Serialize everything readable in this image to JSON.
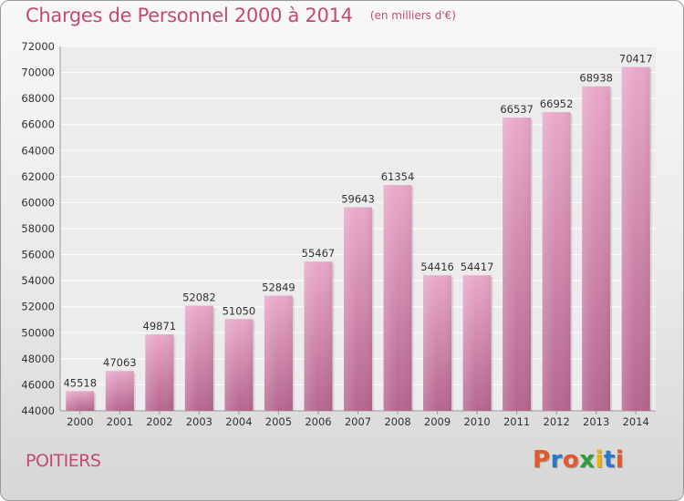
{
  "header": {
    "title": "Charges de Personnel 2000 à 2014",
    "subtitle": "(en milliers d'€)"
  },
  "footer": {
    "city": "POITIERS",
    "logo_text": "Proxiti"
  },
  "colors": {
    "title": "#c24a76",
    "bar_light": "#e9a8c9",
    "bar_dark": "#b5668f",
    "logo": [
      "#e3592b",
      "#2a78c8",
      "#e3592b",
      "#2e9e3a",
      "#f0b400",
      "#2a78c8",
      "#e3592b"
    ]
  },
  "chart_data": {
    "type": "bar",
    "title": "Charges de Personnel 2000 à 2014",
    "subtitle": "(en milliers d'€)",
    "categories": [
      "2000",
      "2001",
      "2002",
      "2003",
      "2004",
      "2005",
      "2006",
      "2007",
      "2008",
      "2009",
      "2010",
      "2011",
      "2012",
      "2013",
      "2014"
    ],
    "values": [
      45518,
      47063,
      49871,
      52082,
      51050,
      52849,
      55467,
      59643,
      61354,
      54416,
      54417,
      66537,
      66952,
      68938,
      70417
    ],
    "ylim": [
      44000,
      72000
    ],
    "yticks": [
      44000,
      46000,
      48000,
      50000,
      52000,
      54000,
      56000,
      58000,
      60000,
      62000,
      64000,
      66000,
      68000,
      70000,
      72000
    ],
    "grid": true,
    "legend": "none"
  }
}
